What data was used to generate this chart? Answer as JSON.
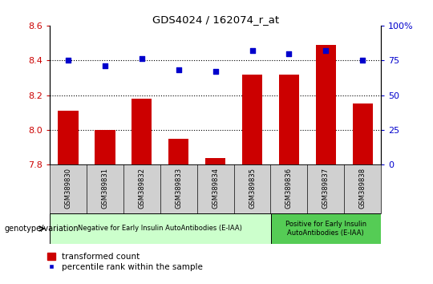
{
  "title": "GDS4024 / 162074_r_at",
  "samples": [
    "GSM389830",
    "GSM389831",
    "GSM389832",
    "GSM389833",
    "GSM389834",
    "GSM389835",
    "GSM389836",
    "GSM389837",
    "GSM389838"
  ],
  "bar_values": [
    8.11,
    8.0,
    8.18,
    7.95,
    7.84,
    8.32,
    8.32,
    8.49,
    8.15
  ],
  "dot_values": [
    75,
    71,
    76,
    68,
    67,
    82,
    80,
    82,
    75
  ],
  "bar_color": "#cc0000",
  "dot_color": "#0000cc",
  "ylim_left": [
    7.8,
    8.6
  ],
  "ylim_right": [
    0,
    100
  ],
  "yticks_left": [
    7.8,
    8.0,
    8.2,
    8.4,
    8.6
  ],
  "yticks_right": [
    0,
    25,
    50,
    75,
    100
  ],
  "hlines": [
    8.0,
    8.2,
    8.4
  ],
  "group1_label": "Negative for Early Insulin AutoAntibodies (E-IAA)",
  "group2_label": "Positive for Early Insulin\nAutoAntibodies (E-IAA)",
  "group1_count": 6,
  "group2_count": 3,
  "group1_color": "#ccffcc",
  "group2_color": "#55cc55",
  "genotype_label": "genotype/variation",
  "legend_bar_label": "transformed count",
  "legend_dot_label": "percentile rank within the sample",
  "bar_color_legend": "#cc0000",
  "dot_color_legend": "#0000cc",
  "tick_color_left": "#cc0000",
  "tick_color_right": "#0000cc",
  "xtick_bg": "#d0d0d0",
  "bar_width": 0.55
}
